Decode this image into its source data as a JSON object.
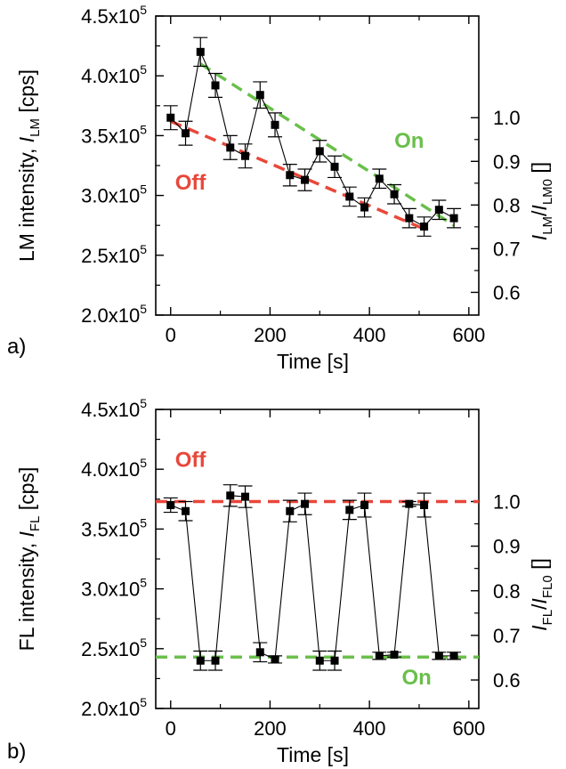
{
  "chart_data": [
    {
      "panel": "a)",
      "type": "scatter",
      "xlabel": "Time [s]",
      "ylabel_main": "LM intensity, ",
      "ylabel_var": "I",
      "ylabel_sub": "LM",
      "ylabel_unit": " [cps]",
      "y2label_num": "I",
      "y2label_num_sub": "LM",
      "y2label_den": "I",
      "y2label_den_sub": "LM0",
      "y2label_unit": " []",
      "xlim": [
        -30,
        620
      ],
      "ylim": [
        200000,
        450000
      ],
      "x_ticks": [
        0,
        200,
        400,
        600
      ],
      "y_ticks": [
        200000,
        250000,
        300000,
        350000,
        400000,
        450000
      ],
      "y_tick_labels": [
        {
          "mant": "2.0x10",
          "exp": "5"
        },
        {
          "mant": "2.5x10",
          "exp": "5"
        },
        {
          "mant": "3.0x10",
          "exp": "5"
        },
        {
          "mant": "3.5x10",
          "exp": "5"
        },
        {
          "mant": "4.0x10",
          "exp": "5"
        },
        {
          "mant": "4.5x10",
          "exp": "5"
        }
      ],
      "y2_ratio_ref": 365000,
      "y2_ticks": [
        0.6,
        0.7,
        0.8,
        0.9,
        1.0
      ],
      "y2_tick_labels": [
        "0.6",
        "0.7",
        "0.8",
        "0.9",
        "1.0"
      ],
      "series": [
        {
          "x": [
            0,
            30,
            60,
            90,
            120,
            150,
            180,
            210,
            240,
            270,
            300,
            330,
            360,
            390,
            420,
            450,
            480,
            510,
            540,
            570
          ],
          "y": [
            365000,
            352000,
            420000,
            392000,
            340000,
            333000,
            384000,
            359000,
            317000,
            313000,
            337000,
            324000,
            299000,
            290000,
            314000,
            301000,
            281000,
            274000,
            288000,
            281000
          ],
          "err": [
            10000,
            10000,
            12000,
            10000,
            10000,
            10000,
            11000,
            10000,
            9000,
            9000,
            9000,
            9000,
            8000,
            8000,
            8000,
            8000,
            8000,
            8000,
            8000,
            8000
          ]
        }
      ],
      "trend_lines": [
        {
          "name": "Off",
          "color": "#e8473a",
          "x": [
            0,
            510
          ],
          "y": [
            362000,
            272000
          ],
          "label_x": 40,
          "label_y": 305000
        },
        {
          "name": "On",
          "color": "#6abf4b",
          "x": [
            60,
            570
          ],
          "y": [
            410000,
            275000
          ],
          "label_x": 480,
          "label_y": 340000
        }
      ]
    },
    {
      "panel": "b)",
      "type": "scatter",
      "xlabel": "Time [s]",
      "ylabel_main": "FL intensity, ",
      "ylabel_var": "I",
      "ylabel_sub": "FL",
      "ylabel_unit": " [cps]",
      "y2label_num": "I",
      "y2label_num_sub": "FL",
      "y2label_den": "I",
      "y2label_den_sub": "FL0",
      "y2label_unit": " []",
      "xlim": [
        -30,
        620
      ],
      "ylim": [
        200000,
        450000
      ],
      "x_ticks": [
        0,
        200,
        400,
        600
      ],
      "y_ticks": [
        200000,
        250000,
        300000,
        350000,
        400000,
        450000
      ],
      "y_tick_labels": [
        {
          "mant": "2.0x10",
          "exp": "5"
        },
        {
          "mant": "2.5x10",
          "exp": "5"
        },
        {
          "mant": "3.0x10",
          "exp": "5"
        },
        {
          "mant": "3.5x10",
          "exp": "5"
        },
        {
          "mant": "4.0x10",
          "exp": "5"
        },
        {
          "mant": "4.5x10",
          "exp": "5"
        }
      ],
      "y2_ratio_ref": 373000,
      "y2_ticks": [
        0.6,
        0.7,
        0.8,
        0.9,
        1.0
      ],
      "y2_tick_labels": [
        "0.6",
        "0.7",
        "0.8",
        "0.9",
        "1.0"
      ],
      "series": [
        {
          "x": [
            0,
            30,
            60,
            90,
            120,
            150,
            180,
            210,
            240,
            270,
            300,
            330,
            360,
            390,
            420,
            450,
            480,
            510,
            540,
            570
          ],
          "y": [
            370000,
            365000,
            240000,
            240000,
            378000,
            377000,
            247000,
            241000,
            365000,
            371000,
            240000,
            240000,
            366000,
            370000,
            244000,
            245000,
            371000,
            370000,
            244000,
            244000
          ],
          "err": [
            6000,
            8000,
            8000,
            8000,
            9000,
            9000,
            8000,
            3000,
            9000,
            9000,
            8000,
            8000,
            8000,
            10000,
            3000,
            2000,
            2000,
            10000,
            3000,
            3000
          ]
        }
      ],
      "trend_lines": [
        {
          "name": "Off",
          "color": "#e8473a",
          "x": [
            -30,
            620
          ],
          "y": [
            373000,
            373000
          ],
          "label_x": 40,
          "label_y": 402000
        },
        {
          "name": "On",
          "color": "#6abf4b",
          "x": [
            -30,
            620
          ],
          "y": [
            243000,
            243000
          ],
          "label_x": 495,
          "label_y": 220000
        }
      ]
    }
  ]
}
